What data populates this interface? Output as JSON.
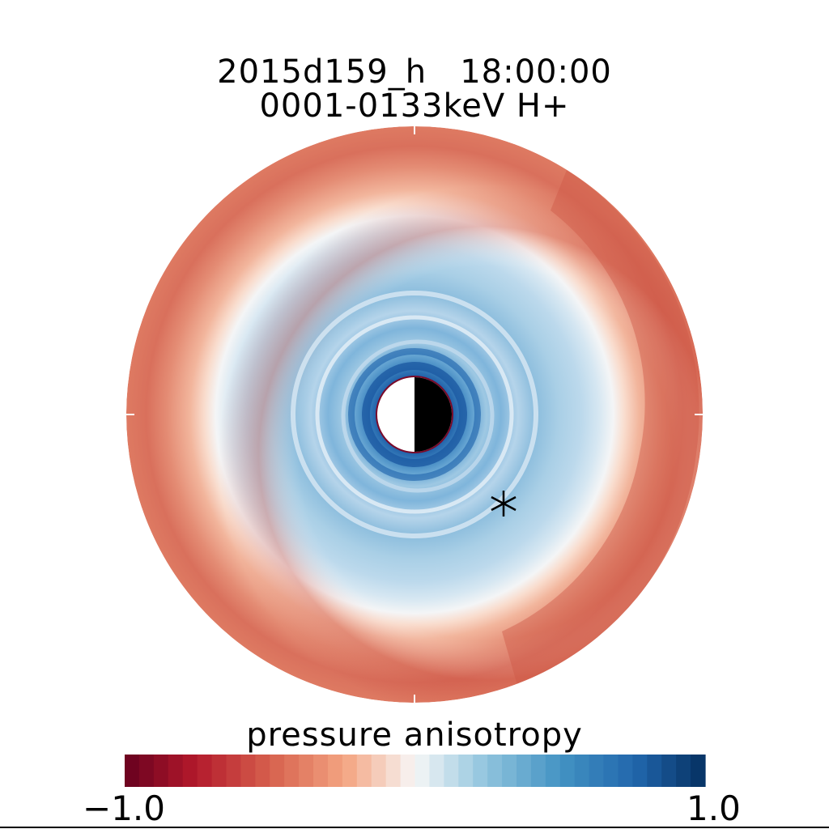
{
  "chart_data": {
    "type": "heatmap",
    "title": "2015d159_h   18:00:00",
    "subtitle": "0001-0133keV H+",
    "colorbar": {
      "label": "pressure anisotropy",
      "range": [
        -1.0,
        1.0
      ],
      "tick_labels": [
        "−1.0",
        "1.0"
      ],
      "colormap": "red-white-blue (diverging)",
      "color_low": "#67001f",
      "color_mid": "#f7f7f7",
      "color_high": "#053061"
    },
    "map": {
      "projection": "polar (equatorial plane)",
      "earth_marker": "half white / half black disk",
      "satellite_marker": "asterisk",
      "radial_profile": [
        {
          "zone": "inner ring near Earth",
          "value": 0.85
        },
        {
          "zone": "inner belt",
          "value": 0.55
        },
        {
          "zone": "middle belt",
          "value": 0.35
        },
        {
          "zone": "transition",
          "value": 0.0
        },
        {
          "zone": "outer boundary",
          "value": -0.5
        }
      ]
    }
  }
}
